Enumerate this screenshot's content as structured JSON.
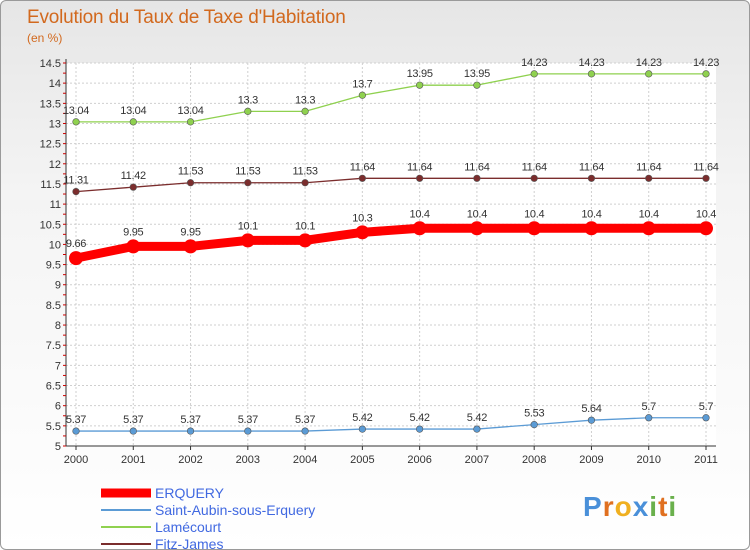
{
  "title": "Evolution du Taux de Taxe d'Habitation",
  "subtitle": "(en %)",
  "logo": {
    "text": "Proxiti"
  },
  "chart_data": {
    "type": "line",
    "x": [
      "2000",
      "2001",
      "2002",
      "2003",
      "2004",
      "2005",
      "2006",
      "2007",
      "2008",
      "2009",
      "2010",
      "2011"
    ],
    "ylim": [
      5,
      14.5
    ],
    "yticks": [
      "5",
      "5.5",
      "6",
      "6.5",
      "7",
      "7.5",
      "8",
      "8.5",
      "9",
      "9.5",
      "10",
      "10.5",
      "11",
      "11.5",
      "12",
      "12.5",
      "13",
      "13.5",
      "14",
      "14.5"
    ],
    "grid": true,
    "legend": "bottom-left",
    "series": [
      {
        "name": "ERQUERY",
        "color": "#ff0000",
        "values": [
          9.66,
          9.95,
          9.95,
          10.1,
          10.1,
          10.3,
          10.4,
          10.4,
          10.4,
          10.4,
          10.4,
          10.4
        ],
        "labels": [
          "9.66",
          "9.95",
          "9.95",
          "10.1",
          "10.1",
          "10.3",
          "10.4",
          "10.4",
          "10.4",
          "10.4",
          "10.4",
          "10.4"
        ]
      },
      {
        "name": "Saint-Aubin-sous-Erquery",
        "color": "#5b9bd5",
        "values": [
          5.37,
          5.37,
          5.37,
          5.37,
          5.37,
          5.42,
          5.42,
          5.42,
          5.53,
          5.64,
          5.7,
          5.7
        ],
        "labels": [
          "5.37",
          "5.37",
          "5.37",
          "5.37",
          "5.37",
          "5.42",
          "5.42",
          "5.42",
          "5.53",
          "5.64",
          "5.7",
          "5.7"
        ]
      },
      {
        "name": "Lamécourt",
        "color": "#8fd14f",
        "values": [
          13.04,
          13.04,
          13.04,
          13.3,
          13.3,
          13.7,
          13.95,
          13.95,
          14.23,
          14.23,
          14.23,
          14.23
        ],
        "labels": [
          "13.04",
          "13.04",
          "13.04",
          "13.3",
          "13.3",
          "13.7",
          "13.95",
          "13.95",
          "14.23",
          "14.23",
          "14.23",
          "14.23"
        ]
      },
      {
        "name": "Fitz-James",
        "color": "#7b2d2d",
        "values": [
          11.31,
          11.42,
          11.53,
          11.53,
          11.53,
          11.64,
          11.64,
          11.64,
          11.64,
          11.64,
          11.64,
          11.64
        ],
        "labels": [
          "11.31",
          "11.42",
          "11.53",
          "11.53",
          "11.53",
          "11.64",
          "11.64",
          "11.64",
          "11.64",
          "11.64",
          "11.64",
          "11.64"
        ]
      }
    ]
  }
}
